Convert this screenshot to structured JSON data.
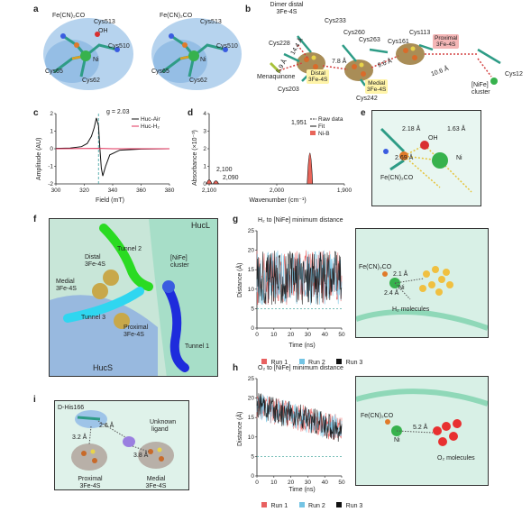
{
  "panels": {
    "a": {
      "label": "a",
      "left": {
        "fe": "Fe(CN)₂CO",
        "cys513": "Cys513",
        "oh": "OH",
        "cys510": "Cys510",
        "cys65": "Cys65",
        "cys62": "Cys62",
        "ni": "Ni"
      },
      "right": {
        "fe": "Fe(CN)₂CO",
        "cys513": "Cys513",
        "cys510": "Cys510",
        "cys65": "Cys65",
        "cys62": "Cys62",
        "ni": "Ni"
      }
    },
    "b": {
      "label": "b",
      "dimer": "Dimer distal",
      "dimer2": "3Fe-4S",
      "cys233": "Cys233",
      "cys228": "Cys228",
      "cys260": "Cys260",
      "cys263": "Cys263",
      "cys161": "Cys161",
      "cys113": "Cys113",
      "proximal": "Proximal",
      "proximal2": "3Fe-4S",
      "menaquinone": "Menaquinone",
      "cys203": "Cys203",
      "distal": "Distal",
      "distal2": "3Fe-4S",
      "medial": "Medial",
      "medial2": "3Fe-4S",
      "cys242": "Cys242",
      "cys12": "Cys12",
      "nife": "[NiFe]",
      "cluster": "cluster",
      "d1": "14.4 Å",
      "d2": "5.9 Å",
      "d3": "7.8 Å",
      "d4": "9.6 Å",
      "d5": "10.6 Å"
    },
    "c": {
      "label": "c",
      "g": "g = 2.03",
      "ylabel": "Amplitude (AU)",
      "xlabel": "Field (mT)",
      "legend": [
        "Huc-Air",
        "Huc-H₂"
      ]
    },
    "d": {
      "label": "d",
      "ylabel": "Absorbance (×10⁻³)",
      "xlabel": "Wavenumber (cm⁻¹)",
      "legend": [
        "Raw data",
        "Fit",
        "Ni-B"
      ],
      "peaks": [
        "2,100",
        "2,090",
        "1,951"
      ]
    },
    "e": {
      "label": "e",
      "d1": "2.18 Å",
      "d2": "1.63 Å",
      "d3": "2.69 Å",
      "oh": "OH",
      "ni": "Ni",
      "fe": "Fe(CN)₂CO"
    },
    "f": {
      "label": "f",
      "hucl": "HucL",
      "hucs": "HucS",
      "tunnel2": "Tunnel 2",
      "tunnel3": "Tunnel 3",
      "tunnel1": "Tunnel 1",
      "nife": "[NiFe]",
      "cluster": "cluster",
      "distal": "Distal",
      "distal2": "3Fe-4S",
      "medial": "Medial",
      "medial2": "3Fe-4S",
      "proximal": "Proximal",
      "proximal2": "3Fe-4S"
    },
    "g": {
      "label": "g",
      "title": "H₂ to [NiFe] minimum distance",
      "ylabel": "Distance (Å)",
      "xlabel": "Time (ns)",
      "runs": [
        "Run 1",
        "Run 2",
        "Run 3"
      ],
      "fe": "Fe(CN)₂CO",
      "d1": "2.1 Å",
      "d2": "2.4 Å",
      "ni": "Ni",
      "mol": "H₂ molecules"
    },
    "h": {
      "label": "h",
      "title": "O₂ to [NiFe] minimum distance",
      "ylabel": "Distance (Å)",
      "xlabel": "Time (ns)",
      "runs": [
        "Run 1",
        "Run 2",
        "Run 3"
      ],
      "fe": "Fe(CN)₂CO",
      "d1": "5.2 Å",
      "ni": "Ni",
      "mol": "O₂ molecules"
    },
    "i": {
      "label": "i",
      "his": "D-His166",
      "d1": "2.6 Å",
      "unknown": "Unknown",
      "ligand": "ligand",
      "d2": "3.2 Å",
      "d3": "3.8 Å",
      "proximal": "Proximal",
      "proximal2": "3Fe-4S",
      "medial": "Medial",
      "medial2": "3Fe-4S"
    }
  },
  "chart_data": [
    {
      "panel": "c",
      "type": "line",
      "xlabel": "Field (mT)",
      "ylabel": "Amplitude (AU)",
      "xlim": [
        300,
        380
      ],
      "ylim": [
        -2,
        2
      ],
      "xticks": [
        300,
        320,
        340,
        360,
        380
      ],
      "yticks": [
        -2,
        -1,
        0,
        1,
        2
      ],
      "series": [
        {
          "name": "Huc-Air",
          "color": "#111111",
          "x": [
            300,
            310,
            318,
            322,
            325,
            327,
            328.5,
            330,
            331,
            332,
            333,
            335,
            338,
            345,
            360,
            380
          ],
          "y": [
            0.02,
            0.04,
            0.12,
            0.3,
            0.7,
            1.2,
            1.75,
            1.3,
            0,
            -1.1,
            -1.55,
            -1.0,
            -0.35,
            -0.08,
            -0.02,
            0
          ]
        },
        {
          "name": "Huc-H₂",
          "color": "#e0315a",
          "x": [
            300,
            320,
            330,
            340,
            360,
            380
          ],
          "y": [
            0,
            0.01,
            0.02,
            0,
            0,
            0
          ]
        }
      ],
      "annotation": {
        "text": "g = 2.03",
        "x": 330
      }
    },
    {
      "panel": "d",
      "type": "line",
      "xlabel": "Wavenumber (cm⁻¹)",
      "ylabel": "Absorbance (×10⁻³)",
      "xlim": [
        2100,
        1900
      ],
      "ylim": [
        0,
        4
      ],
      "xticks": [
        2100,
        2000,
        1900
      ],
      "xtick_labels": [
        "2,100",
        "2,000",
        "1,900"
      ],
      "yticks": [
        0,
        1,
        2,
        3,
        4
      ],
      "series": [
        {
          "name": "Raw data",
          "color": "#333333",
          "peaks": [
            [
              2100,
              0.35
            ],
            [
              2090,
              0.25
            ],
            [
              1951,
              3.4
            ]
          ]
        },
        {
          "name": "Fit",
          "color": "#111111",
          "peaks": [
            [
              2100,
              0.35
            ],
            [
              2090,
              0.25
            ],
            [
              1951,
              3.4
            ]
          ]
        },
        {
          "name": "Ni-B",
          "color": "#e8655a",
          "peaks": [
            [
              2100,
              0.35
            ],
            [
              2090,
              0.25
            ],
            [
              1951,
              3.4
            ]
          ]
        }
      ]
    },
    {
      "panel": "g",
      "type": "line",
      "xlabel": "Time (ns)",
      "ylabel": "Distance (Å)",
      "xlim": [
        0,
        50
      ],
      "ylim": [
        0,
        25
      ],
      "xticks": [
        0,
        10,
        20,
        30,
        40,
        50
      ],
      "yticks": [
        0,
        5,
        10,
        15,
        20,
        25
      ],
      "reference_line": 5,
      "series": [
        {
          "name": "Run 1",
          "color": "#e86060"
        },
        {
          "name": "Run 2",
          "color": "#74c4e4"
        },
        {
          "name": "Run 3",
          "color": "#111111"
        }
      ]
    },
    {
      "panel": "h",
      "type": "line",
      "xlabel": "Time (ns)",
      "ylabel": "Distance (Å)",
      "xlim": [
        0,
        50
      ],
      "ylim": [
        0,
        25
      ],
      "xticks": [
        0,
        10,
        20,
        30,
        40,
        50
      ],
      "yticks": [
        0,
        5,
        10,
        15,
        20,
        25
      ],
      "reference_line": 5,
      "series": [
        {
          "name": "Run 1",
          "color": "#e86060"
        },
        {
          "name": "Run 2",
          "color": "#74c4e4"
        },
        {
          "name": "Run 3",
          "color": "#111111"
        }
      ]
    }
  ]
}
